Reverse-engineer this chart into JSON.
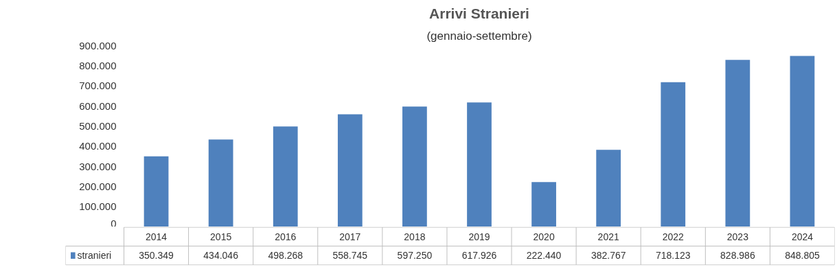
{
  "chart_data": {
    "type": "bar",
    "title": "Arrivi Stranieri",
    "subtitle": "(gennaio-settembre)",
    "categories": [
      "2014",
      "2015",
      "2016",
      "2017",
      "2018",
      "2019",
      "2020",
      "2021",
      "2022",
      "2023",
      "2024"
    ],
    "series": [
      {
        "name": "stranieri",
        "color": "#4f81bd",
        "values": [
          350349,
          434046,
          498268,
          558745,
          597250,
          617926,
          222440,
          382767,
          718123,
          828986,
          848805
        ],
        "value_labels": [
          "350.349",
          "434.046",
          "498.268",
          "558.745",
          "597.250",
          "617.926",
          "222.440",
          "382.767",
          "718.123",
          "828.986",
          "848.805"
        ]
      }
    ],
    "ylim": [
      0,
      900000
    ],
    "yticks": [
      {
        "value": 0,
        "label": "0"
      },
      {
        "value": 100000,
        "label": "100.000"
      },
      {
        "value": 200000,
        "label": "200.000"
      },
      {
        "value": 300000,
        "label": "300.000"
      },
      {
        "value": 400000,
        "label": "400.000"
      },
      {
        "value": 500000,
        "label": "500.000"
      },
      {
        "value": 600000,
        "label": "600.000"
      },
      {
        "value": 700000,
        "label": "700.000"
      },
      {
        "value": 800000,
        "label": "800.000"
      },
      {
        "value": 900000,
        "label": "900.000"
      }
    ],
    "grid": false
  }
}
